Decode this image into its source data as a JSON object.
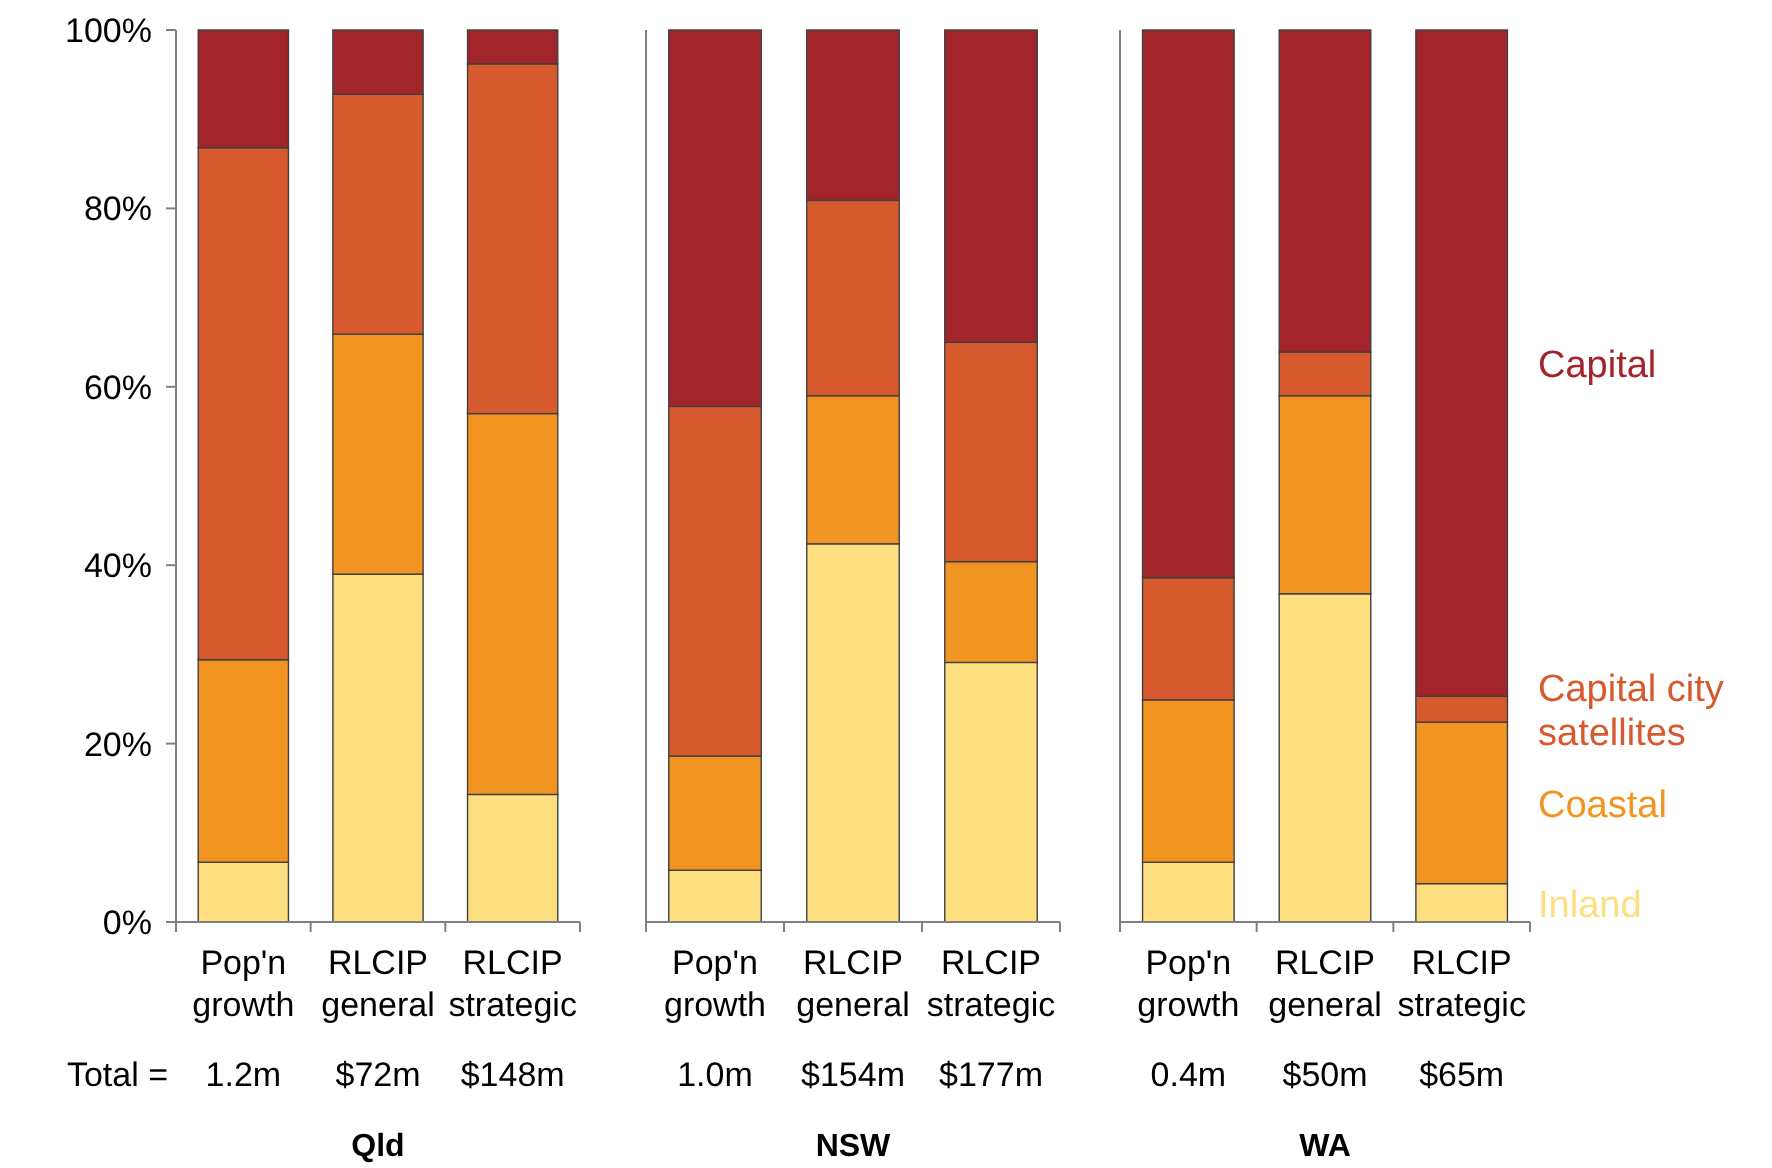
{
  "chart_data": [
    {
      "type": "bar",
      "title": "Qld",
      "stacked": true,
      "categories": [
        "Pop'n growth",
        "RLCIP general",
        "RLCIP strategic"
      ],
      "ylim": [
        0,
        100
      ],
      "yticks": [
        {
          "value": 0,
          "label": "0%"
        },
        {
          "value": 20,
          "label": "20%"
        },
        {
          "value": 40,
          "label": "40%"
        },
        {
          "value": 60,
          "label": "60%"
        },
        {
          "value": 80,
          "label": "80%"
        },
        {
          "value": 100,
          "label": "100%"
        }
      ],
      "annotations": [
        "Total  =",
        "1.2m",
        "$72m",
        "$148m"
      ],
      "series": [
        {
          "color": "#fddf80",
          "values": [
            6.7,
            39.0,
            14.3
          ]
        },
        {
          "color": "#f29422",
          "values": [
            22.7,
            26.9,
            42.7
          ]
        },
        {
          "color": "#d65a2e",
          "values": [
            57.4,
            26.9,
            39.2
          ]
        },
        {
          "color": "#a1252a",
          "values": [
            13.2,
            7.2,
            3.8
          ]
        }
      ]
    },
    {
      "type": "bar",
      "title": "NSW",
      "stacked": true,
      "tick_labels": "x",
      "categories": [
        "Pop'n growth",
        "RLCIP general",
        "RLCIP strategic"
      ],
      "ylim": [
        0,
        100
      ],
      "annotations": [
        "1.0m",
        "$154m",
        "$177m"
      ],
      "series": [
        {
          "color": "#fddf80",
          "values": [
            5.8,
            42.4,
            29.1
          ]
        },
        {
          "color": "#f29422",
          "values": [
            12.8,
            16.6,
            11.3
          ]
        },
        {
          "color": "#d65a2e",
          "values": [
            39.2,
            21.9,
            24.6
          ]
        },
        {
          "color": "#a1252a",
          "values": [
            42.2,
            19.1,
            35.0
          ]
        }
      ]
    },
    {
      "type": "bar",
      "title": "WA",
      "stacked": true,
      "tick_labels": "x",
      "legend": "right",
      "categories": [
        "Pop'n growth",
        "RLCIP general",
        "RLCIP strategic"
      ],
      "ylim": [
        0,
        100
      ],
      "annotations": [
        "0.4m",
        "$50m",
        "$65m"
      ],
      "series": [
        {
          "name": "Inland",
          "color": "#fddf80",
          "values": [
            6.7,
            36.8,
            4.3
          ]
        },
        {
          "name": "Coastal",
          "color": "#f29422",
          "values": [
            18.2,
            22.2,
            18.1
          ]
        },
        {
          "name": "Capital city satellites",
          "color": "#d65a2e",
          "values": [
            13.7,
            4.9,
            2.9
          ]
        },
        {
          "name": "Capital",
          "color": "#a1252a",
          "values": [
            61.4,
            36.1,
            74.7
          ]
        }
      ]
    }
  ]
}
